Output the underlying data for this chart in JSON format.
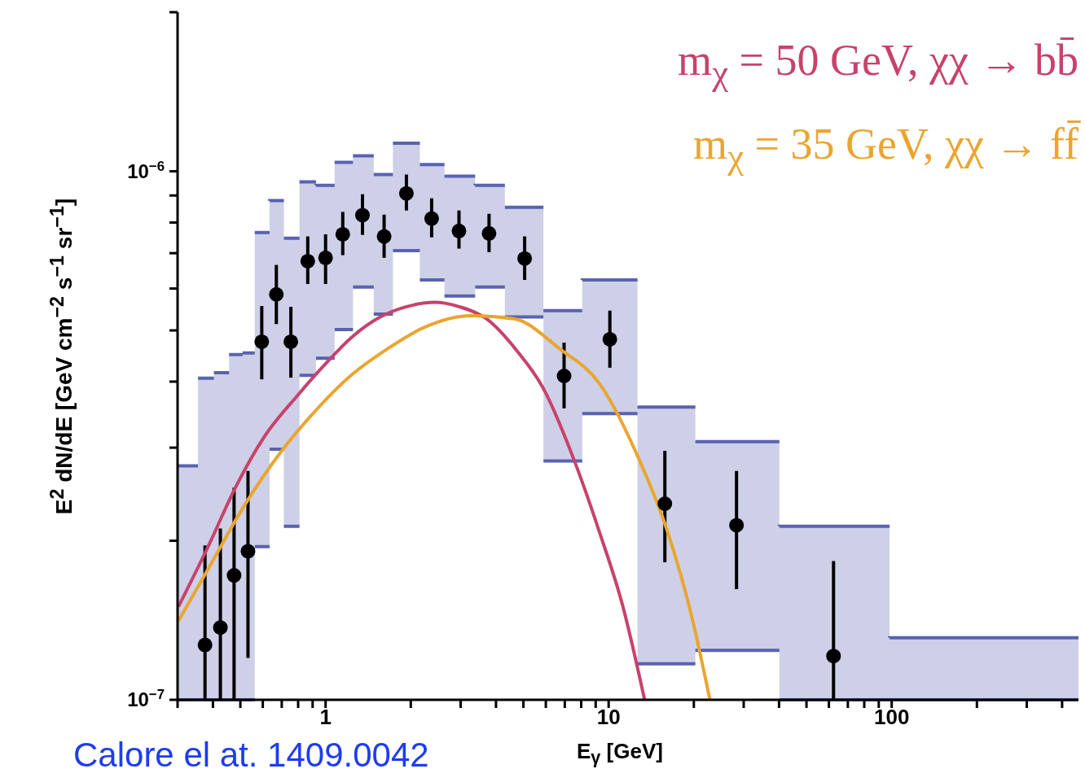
{
  "chart_data": {
    "type": "scatter",
    "xlabel": "E$_{γ}$  [GeV]",
    "ylabel": "E$^{2}$ dN/dE   [GeV cm$^{−2}$ s$^{−1}$ sr$^{−1}$]",
    "annotations": [
      "Calore el at. 1409.0042"
    ],
    "log": "xy",
    "xlim": [
      0.3,
      457
    ],
    "ylim": [
      1e-07,
      2e-06
    ],
    "xticks": [
      {
        "value": 0.3,
        "label": null
      },
      {
        "value": 0.4,
        "label": null
      },
      {
        "value": 0.5,
        "label": null
      },
      {
        "value": 0.6,
        "label": null
      },
      {
        "value": 0.7,
        "label": null
      },
      {
        "value": 0.8,
        "label": null
      },
      {
        "value": 0.9,
        "label": null
      },
      1,
      {
        "value": 2,
        "label": null
      },
      {
        "value": 3,
        "label": null
      },
      {
        "value": 4,
        "label": null
      },
      {
        "value": 5,
        "label": null
      },
      {
        "value": 6,
        "label": null
      },
      {
        "value": 7,
        "label": null
      },
      {
        "value": 8,
        "label": null
      },
      {
        "value": 9,
        "label": null
      },
      10,
      {
        "value": 20,
        "label": null
      },
      {
        "value": 30,
        "label": null
      },
      {
        "value": 40,
        "label": null
      },
      {
        "value": 50,
        "label": null
      },
      {
        "value": 60,
        "label": null
      },
      {
        "value": 70,
        "label": null
      },
      {
        "value": 80,
        "label": null
      },
      {
        "value": 90,
        "label": null
      },
      100,
      {
        "value": 200,
        "label": null
      },
      {
        "value": 300,
        "label": null
      },
      {
        "value": 400,
        "label": null
      }
    ],
    "yticks": [
      {
        "value": 1e-07,
        "label": "10$^{−7}$"
      },
      {
        "value": 2e-07,
        "label": null
      },
      {
        "value": 3e-07,
        "label": null
      },
      {
        "value": 4e-07,
        "label": null
      },
      {
        "value": 5e-07,
        "label": null
      },
      {
        "value": 6e-07,
        "label": null
      },
      {
        "value": 7e-07,
        "label": null
      },
      {
        "value": 8e-07,
        "label": null
      },
      {
        "value": 9e-07,
        "label": null
      },
      {
        "value": 1e-06,
        "label": "10$^{−6}$"
      },
      {
        "value": 2e-06,
        "label": null
      }
    ],
    "legend": "top right",
    "series": [
      {
        "type": "bar",
        "color": "#5a62b0",
        "x": [
          0.326,
          0.378,
          0.429,
          0.482,
          0.535,
          0.597,
          0.672,
          0.759,
          0.865,
          0.998,
          1.16,
          1.36,
          1.6,
          1.93,
          2.38,
          2.98,
          3.81,
          5.03,
          6.89,
          10.1,
          16.0,
          28.5,
          62.8,
          214
        ],
        "base": [
          1e-07,
          1e-07,
          1e-07,
          1e-07,
          1e-07,
          1.95e-07,
          2.98e-07,
          2.13e-07,
          4.11e-07,
          4.43e-07,
          5.02e-07,
          6.04e-07,
          5.37e-07,
          7.08e-07,
          6.23e-07,
          5.81e-07,
          6.04e-07,
          5.3e-07,
          2.83e-07,
          3.48e-07,
          1.17e-07,
          1.24e-07,
          1e-07,
          1e-07
        ],
        "values": [
          1.77e-07,
          3.06e-07,
          3.16e-07,
          3.5e-07,
          3.53e-07,
          5.71e-07,
          5.82e-07,
          5.34e-07,
          5.44e-07,
          4.98e-07,
          5.38e-07,
          4.66e-07,
          4.49e-07,
          4.22e-07,
          4.07e-07,
          3.98e-07,
          3.37e-07,
          3.25e-07,
          2.62e-07,
          2.75e-07,
          2.41e-07,
          1.84e-07,
          1.13e-07,
          3.1e-08
        ]
      },
      {
        "color": "#000000",
        "marker": "circle",
        "x": [
          0.375,
          0.425,
          0.475,
          0.532,
          0.595,
          0.67,
          0.754,
          0.865,
          1.0,
          1.15,
          1.35,
          1.61,
          1.93,
          2.37,
          2.96,
          3.78,
          5.05,
          6.96,
          10.1,
          15.8,
          28.3,
          62.3
        ],
        "values": [
          1.27e-07,
          1.37e-07,
          1.72e-07,
          1.91e-07,
          4.76e-07,
          5.85e-07,
          4.76e-07,
          6.76e-07,
          6.86e-07,
          7.6e-07,
          8.26e-07,
          7.53e-07,
          9.08e-07,
          8.14e-07,
          7.71e-07,
          7.63e-07,
          6.84e-07,
          4.1e-07,
          4.81e-07,
          2.35e-07,
          2.14e-07,
          1.21e-07
        ],
        "errors": [
          [
            1e-07,
            1.96e-07
          ],
          [
            1e-07,
            2.11e-07
          ],
          [
            1e-07,
            2.52e-07
          ],
          [
            1.2e-07,
            2.71e-07
          ],
          [
            4.04e-07,
            5.56e-07
          ],
          [
            5.14e-07,
            6.65e-07
          ],
          [
            4.07e-07,
            5.54e-07
          ],
          [
            6.12e-07,
            7.53e-07
          ],
          [
            6.12e-07,
            7.6e-07
          ],
          [
            6.94e-07,
            8.38e-07
          ],
          [
            7.58e-07,
            9.05e-07
          ],
          [
            6.86e-07,
            8.28e-07
          ],
          [
            8.43e-07,
            9.86e-07
          ],
          [
            7.5e-07,
            8.89e-07
          ],
          [
            7.14e-07,
            8.43e-07
          ],
          [
            7.03e-07,
            8.31e-07
          ],
          [
            6.23e-07,
            7.53e-07
          ],
          [
            3.56e-07,
            4.74e-07
          ],
          [
            4.25e-07,
            5.45e-07
          ],
          [
            1.82e-07,
            2.96e-07
          ],
          [
            1.62e-07,
            2.71e-07
          ],
          [
            1e-07,
            1.83e-07
          ]
        ]
      },
      {
        "type": "line",
        "name": "m$_{χ}$ = 50 GeV, χχ → bb̄",
        "color": "#c8426b",
        "x": [
          0.302,
          0.383,
          0.482,
          0.611,
          0.794,
          1.007,
          1.23,
          1.56,
          1.92,
          2.43,
          2.98,
          3.7,
          4.72,
          5.87,
          7.48,
          9.3,
          11.2,
          13.4
        ],
        "values": [
          1.5e-07,
          1.94e-07,
          2.53e-07,
          3.16e-07,
          3.76e-07,
          4.34e-07,
          4.84e-07,
          5.3e-07,
          5.54e-07,
          5.65e-07,
          5.54e-07,
          5.26e-07,
          4.59e-07,
          3.89e-07,
          2.88e-07,
          2.07e-07,
          1.51e-07,
          1e-07
        ]
      },
      {
        "type": "line",
        "name": "m$_{χ}$ = 35 GeV, χχ → ff̄",
        "color": "#eaa530",
        "x": [
          0.302,
          0.383,
          0.511,
          0.687,
          0.924,
          1.23,
          1.66,
          2.22,
          3.27,
          4.63,
          6.7,
          9.3,
          12.7,
          16.2,
          19.4,
          22.8
        ],
        "values": [
          1.41e-07,
          1.76e-07,
          2.31e-07,
          2.92e-07,
          3.53e-07,
          4.11e-07,
          4.62e-07,
          5.06e-07,
          5.33e-07,
          5.26e-07,
          4.62e-07,
          3.96e-07,
          2.88e-07,
          2.07e-07,
          1.48e-07,
          1e-07
        ]
      }
    ]
  }
}
